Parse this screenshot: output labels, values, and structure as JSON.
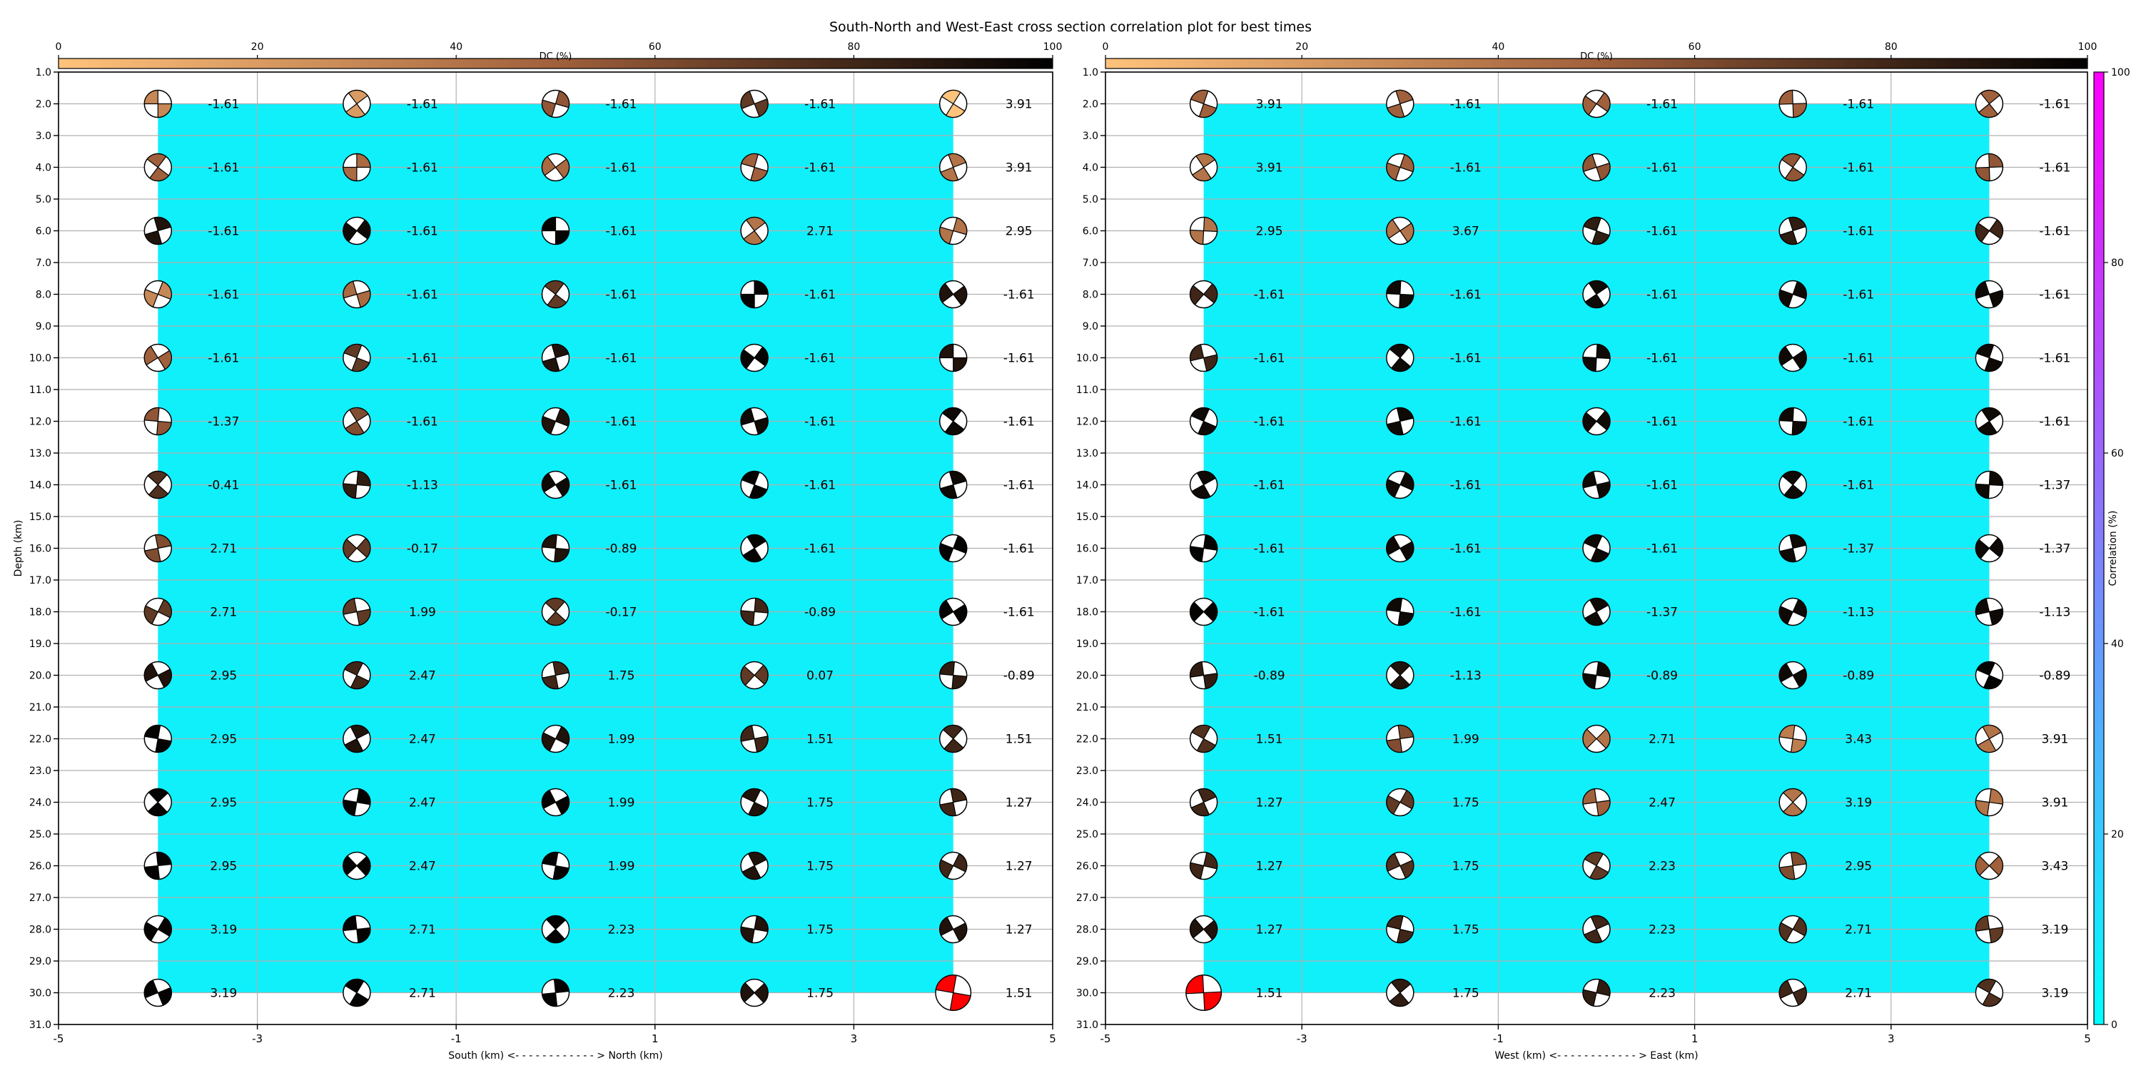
{
  "title": "South-North and West-East cross section correlation plot for best times",
  "colors": {
    "fill": "#0ff0fb",
    "grid": "#b0b0b0",
    "dc_start": "#ffc37c",
    "dc_mid": "#a0603c",
    "dc_end": "#000000",
    "corr_start": "#00ffff",
    "corr_end": "#ff00ff",
    "best": "#ff0000"
  },
  "chart_data": [
    {
      "type": "scatter",
      "panel": "south-north",
      "title": "",
      "xlabel": "South (km) <- - - - - - - - - - - - > North (km)",
      "ylabel": "Depth (km)",
      "xlim": [
        -5,
        5
      ],
      "ylim": [
        31,
        1
      ],
      "xticks": [
        -5,
        -3,
        -1,
        1,
        3,
        5
      ],
      "yticks": [
        "1.0",
        "2.0",
        "3.0",
        "4.0",
        "5.0",
        "6.0",
        "7.0",
        "8.0",
        "9.0",
        "10.0",
        "11.0",
        "12.0",
        "13.0",
        "14.0",
        "15.0",
        "16.0",
        "17.0",
        "18.0",
        "19.0",
        "20.0",
        "21.0",
        "22.0",
        "23.0",
        "24.0",
        "25.0",
        "26.0",
        "27.0",
        "28.0",
        "29.0",
        "30.0",
        "31.0"
      ],
      "grid": true,
      "x": [
        -4,
        -2,
        0,
        2,
        4
      ],
      "depths": [
        2,
        4,
        6,
        8,
        10,
        12,
        14,
        16,
        18,
        20,
        22,
        24,
        26,
        28,
        30
      ],
      "values": [
        [
          "-1.61",
          "-1.61",
          "-1.61",
          "-1.61",
          "3.91"
        ],
        [
          "-1.61",
          "-1.61",
          "-1.61",
          "-1.61",
          "3.91"
        ],
        [
          "-1.61",
          "-1.61",
          "-1.61",
          "2.71",
          "2.95"
        ],
        [
          "-1.61",
          "-1.61",
          "-1.61",
          "-1.61",
          "-1.61"
        ],
        [
          "-1.61",
          "-1.61",
          "-1.61",
          "-1.61",
          "-1.61"
        ],
        [
          "-1.37",
          "-1.61",
          "-1.61",
          "-1.61",
          "-1.61"
        ],
        [
          "-0.41",
          "-1.13",
          "-1.61",
          "-1.61",
          "-1.61"
        ],
        [
          "2.71",
          "-0.17",
          "-0.89",
          "-1.61",
          "-1.61"
        ],
        [
          "2.71",
          "1.99",
          "-0.17",
          "-0.89",
          "-1.61"
        ],
        [
          "2.95",
          "2.47",
          "1.75",
          "0.07",
          "-0.89"
        ],
        [
          "2.95",
          "2.47",
          "1.99",
          "1.51",
          "1.51"
        ],
        [
          "2.95",
          "2.47",
          "1.99",
          "1.75",
          "1.27"
        ],
        [
          "2.95",
          "2.47",
          "1.99",
          "1.75",
          "1.27"
        ],
        [
          "3.19",
          "2.71",
          "2.23",
          "1.75",
          "1.27"
        ],
        [
          "3.19",
          "2.71",
          "2.23",
          "1.75",
          "1.51"
        ]
      ],
      "dc_percent": [
        [
          30,
          20,
          55,
          70,
          0
        ],
        [
          50,
          45,
          45,
          50,
          40
        ],
        [
          90,
          95,
          98,
          40,
          40
        ],
        [
          30,
          45,
          70,
          98,
          90
        ],
        [
          50,
          70,
          90,
          98,
          90
        ],
        [
          55,
          60,
          90,
          95,
          95
        ],
        [
          75,
          85,
          95,
          98,
          95
        ],
        [
          60,
          70,
          90,
          98,
          98
        ],
        [
          70,
          70,
          70,
          80,
          98
        ],
        [
          90,
          80,
          80,
          70,
          85
        ],
        [
          98,
          90,
          90,
          80,
          80
        ],
        [
          98,
          98,
          98,
          90,
          80
        ],
        [
          98,
          98,
          98,
          90,
          80
        ],
        [
          98,
          98,
          98,
          90,
          90
        ],
        [
          98,
          98,
          98,
          90,
          0
        ]
      ],
      "best": {
        "x": 4,
        "depth": 30
      },
      "filled_region": {
        "x": [
          -4,
          4
        ],
        "depth": [
          2,
          30
        ]
      },
      "colorbar": {
        "label": "DC (%)",
        "range": [
          0,
          100
        ],
        "ticks": [
          "0",
          "20",
          "40",
          "60",
          "80",
          "100"
        ],
        "location": "top"
      }
    },
    {
      "type": "scatter",
      "panel": "west-east",
      "title": "",
      "xlabel": "West (km) <- - - - - - - - - - - - > East (km)",
      "ylabel": "",
      "xlim": [
        -5,
        5
      ],
      "ylim": [
        31,
        1
      ],
      "xticks": [
        -5,
        -3,
        -1,
        1,
        3,
        5
      ],
      "yticks": [
        "1.0",
        "2.0",
        "3.0",
        "4.0",
        "5.0",
        "6.0",
        "7.0",
        "8.0",
        "9.0",
        "10.0",
        "11.0",
        "12.0",
        "13.0",
        "14.0",
        "15.0",
        "16.0",
        "17.0",
        "18.0",
        "19.0",
        "20.0",
        "21.0",
        "22.0",
        "23.0",
        "24.0",
        "25.0",
        "26.0",
        "27.0",
        "28.0",
        "29.0",
        "30.0",
        "31.0"
      ],
      "grid": true,
      "x": [
        -4,
        -2,
        0,
        2,
        4
      ],
      "depths": [
        2,
        4,
        6,
        8,
        10,
        12,
        14,
        16,
        18,
        20,
        22,
        24,
        26,
        28,
        30
      ],
      "values": [
        [
          "3.91",
          "-1.61",
          "-1.61",
          "-1.61",
          "-1.61"
        ],
        [
          "3.91",
          "-1.61",
          "-1.61",
          "-1.61",
          "-1.61"
        ],
        [
          "2.95",
          "3.67",
          "-1.61",
          "-1.61",
          "-1.61"
        ],
        [
          "-1.61",
          "-1.61",
          "-1.61",
          "-1.61",
          "-1.61"
        ],
        [
          "-1.61",
          "-1.61",
          "-1.61",
          "-1.61",
          "-1.61"
        ],
        [
          "-1.61",
          "-1.61",
          "-1.61",
          "-1.61",
          "-1.61"
        ],
        [
          "-1.61",
          "-1.61",
          "-1.61",
          "-1.61",
          "-1.37"
        ],
        [
          "-1.61",
          "-1.61",
          "-1.61",
          "-1.37",
          "-1.37"
        ],
        [
          "-1.61",
          "-1.61",
          "-1.37",
          "-1.13",
          "-1.13"
        ],
        [
          "-0.89",
          "-1.13",
          "-0.89",
          "-0.89",
          "-0.89"
        ],
        [
          "1.51",
          "1.99",
          "2.71",
          "3.43",
          "3.91"
        ],
        [
          "1.27",
          "1.75",
          "2.47",
          "3.19",
          "3.91"
        ],
        [
          "1.27",
          "1.75",
          "2.23",
          "2.95",
          "3.43"
        ],
        [
          "1.27",
          "1.75",
          "2.23",
          "2.71",
          "3.19"
        ],
        [
          "1.51",
          "1.75",
          "2.23",
          "2.71",
          "3.19"
        ]
      ],
      "dc_percent": [
        [
          50,
          50,
          50,
          50,
          50
        ],
        [
          40,
          50,
          55,
          55,
          55
        ],
        [
          40,
          40,
          85,
          85,
          80
        ],
        [
          80,
          95,
          95,
          95,
          95
        ],
        [
          80,
          95,
          95,
          95,
          95
        ],
        [
          95,
          95,
          95,
          95,
          95
        ],
        [
          95,
          95,
          95,
          95,
          95
        ],
        [
          98,
          95,
          95,
          95,
          95
        ],
        [
          98,
          95,
          95,
          95,
          95
        ],
        [
          85,
          90,
          95,
          95,
          98
        ],
        [
          75,
          60,
          40,
          35,
          40
        ],
        [
          80,
          70,
          50,
          40,
          40
        ],
        [
          80,
          75,
          70,
          60,
          50
        ],
        [
          90,
          80,
          80,
          75,
          70
        ],
        [
          0,
          85,
          85,
          80,
          75
        ]
      ],
      "best": {
        "x": -4,
        "depth": 30
      },
      "filled_region": {
        "x": [
          -4,
          4
        ],
        "depth": [
          2,
          30
        ]
      },
      "colorbar": {
        "label": "DC (%)",
        "range": [
          0,
          100
        ],
        "ticks": [
          "0",
          "20",
          "40",
          "60",
          "80",
          "100"
        ],
        "location": "top"
      }
    }
  ],
  "correlation_colorbar": {
    "label": "Correlation (%)",
    "range": [
      0,
      100
    ],
    "ticks": [
      "0",
      "20",
      "40",
      "60",
      "80",
      "100"
    ],
    "location": "right"
  }
}
